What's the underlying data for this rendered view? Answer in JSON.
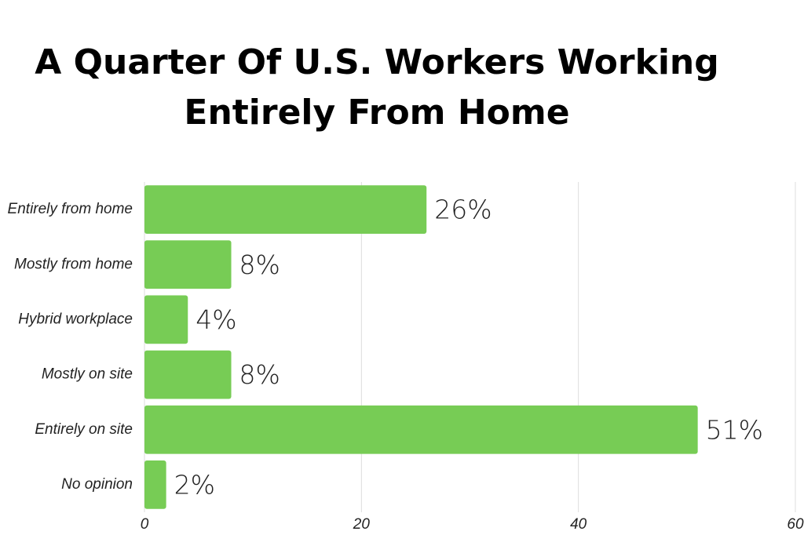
{
  "chart_data": {
    "type": "bar",
    "orientation": "horizontal",
    "title": "A Quarter Of U.S. Workers Working Entirely From Home",
    "categories": [
      "Entirely from home",
      "Mostly from home",
      "Hybrid workplace",
      "Mostly on site",
      "Entirely on site",
      "No opinion"
    ],
    "values": [
      26,
      8,
      4,
      8,
      51,
      2
    ],
    "value_labels": [
      "26%",
      "8%",
      "4%",
      "8%",
      "51%",
      "2%"
    ],
    "color": "#77cc55",
    "xlim": [
      0,
      60
    ],
    "xticks": [
      0,
      20,
      40,
      60
    ],
    "grid": true
  }
}
